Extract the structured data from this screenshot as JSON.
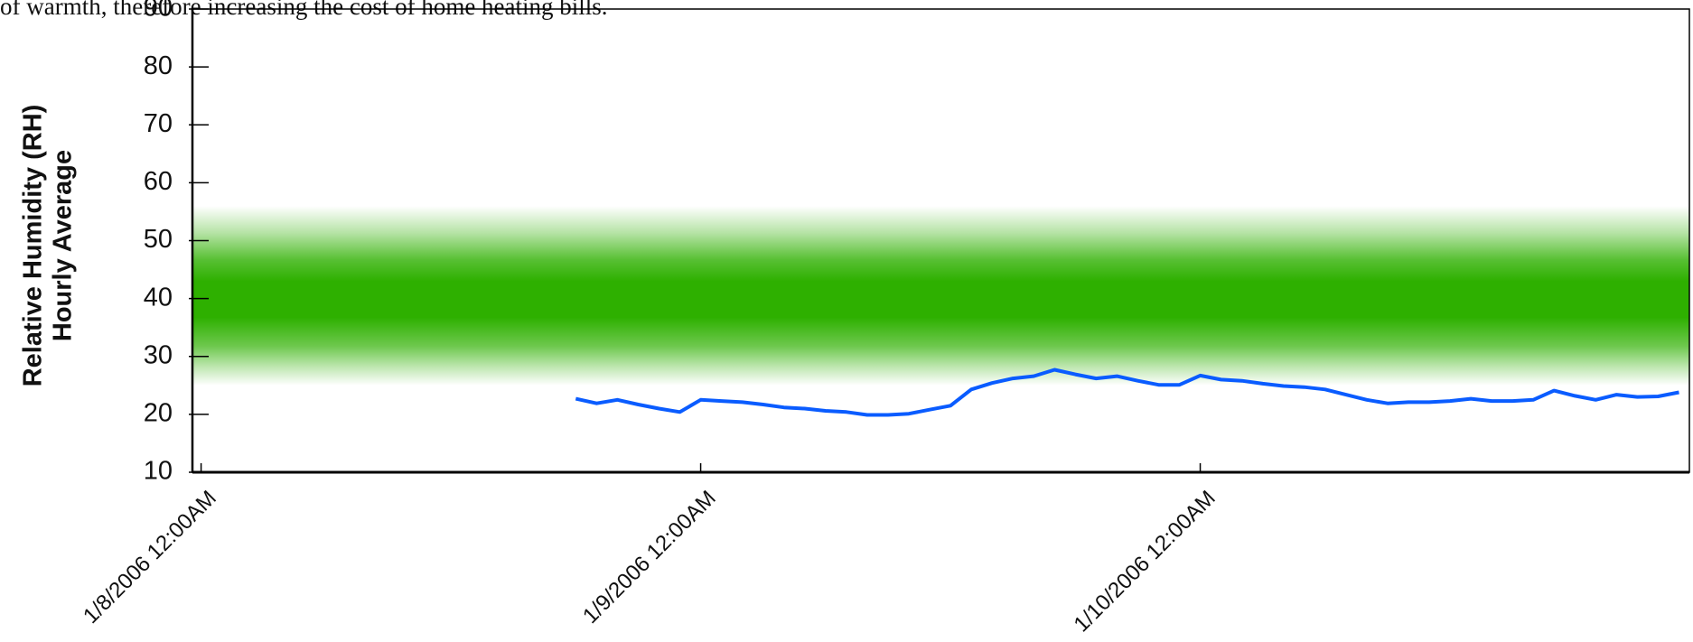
{
  "chart_data": {
    "type": "line",
    "annotation": "of warmth, therefore increasing the cost of home heating bills.",
    "ylabel": [
      "Relative Humidity (RH)",
      "Hourly Average"
    ],
    "ylim": [
      10,
      90
    ],
    "yticks": [
      10,
      20,
      30,
      40,
      50,
      60,
      70,
      80,
      90
    ],
    "xlim": [
      "2006-01-07T23:35",
      "2006-01-10T23:30"
    ],
    "xticks": [
      {
        "value": "2006-01-08T00:00",
        "label": "1/8/2006 12:00AM"
      },
      {
        "value": "2006-01-09T00:00",
        "label": "1/9/2006 12:00AM"
      },
      {
        "value": "2006-01-10T00:00",
        "label": "1/10/2006 12:00AM"
      }
    ],
    "target_band": {
      "ylim": [
        25,
        56
      ],
      "color": "#2eb000"
    },
    "x": [
      "2006-01-08T18:00",
      "2006-01-08T19:00",
      "2006-01-08T20:00",
      "2006-01-08T21:00",
      "2006-01-08T22:00",
      "2006-01-08T23:00",
      "2006-01-09T00:00",
      "2006-01-09T01:00",
      "2006-01-09T02:00",
      "2006-01-09T03:00",
      "2006-01-09T04:00",
      "2006-01-09T05:00",
      "2006-01-09T06:00",
      "2006-01-09T07:00",
      "2006-01-09T08:00",
      "2006-01-09T09:00",
      "2006-01-09T10:00",
      "2006-01-09T11:00",
      "2006-01-09T12:00",
      "2006-01-09T13:00",
      "2006-01-09T14:00",
      "2006-01-09T15:00",
      "2006-01-09T16:00",
      "2006-01-09T17:00",
      "2006-01-09T18:00",
      "2006-01-09T19:00",
      "2006-01-09T20:00",
      "2006-01-09T21:00",
      "2006-01-09T22:00",
      "2006-01-09T23:00",
      "2006-01-10T00:00",
      "2006-01-10T01:00",
      "2006-01-10T02:00",
      "2006-01-10T03:00",
      "2006-01-10T04:00",
      "2006-01-10T05:00",
      "2006-01-10T06:00",
      "2006-01-10T07:00",
      "2006-01-10T08:00",
      "2006-01-10T09:00",
      "2006-01-10T10:00",
      "2006-01-10T11:00",
      "2006-01-10T12:00",
      "2006-01-10T13:00",
      "2006-01-10T14:00",
      "2006-01-10T15:00",
      "2006-01-10T16:00",
      "2006-01-10T17:00",
      "2006-01-10T18:00",
      "2006-01-10T19:00",
      "2006-01-10T20:00",
      "2006-01-10T21:00",
      "2006-01-10T22:00",
      "2006-01-10T23:00"
    ],
    "series": [
      {
        "name": "RH",
        "color": "#0a5cff",
        "values": [
          22.7,
          21.9,
          22.5,
          21.7,
          21.0,
          20.4,
          22.5,
          22.3,
          22.1,
          21.7,
          21.2,
          21.0,
          20.6,
          20.4,
          19.9,
          19.9,
          20.1,
          20.8,
          21.5,
          24.3,
          25.4,
          26.2,
          26.6,
          27.7,
          26.9,
          26.2,
          26.6,
          25.8,
          25.1,
          25.1,
          26.7,
          26.0,
          25.8,
          25.3,
          24.9,
          24.7,
          24.3,
          23.4,
          22.5,
          21.9,
          22.1,
          22.1,
          22.3,
          22.7,
          22.3,
          22.3,
          22.5,
          24.1,
          23.2,
          22.5,
          23.4,
          23.0,
          23.1,
          23.8
        ]
      }
    ]
  }
}
